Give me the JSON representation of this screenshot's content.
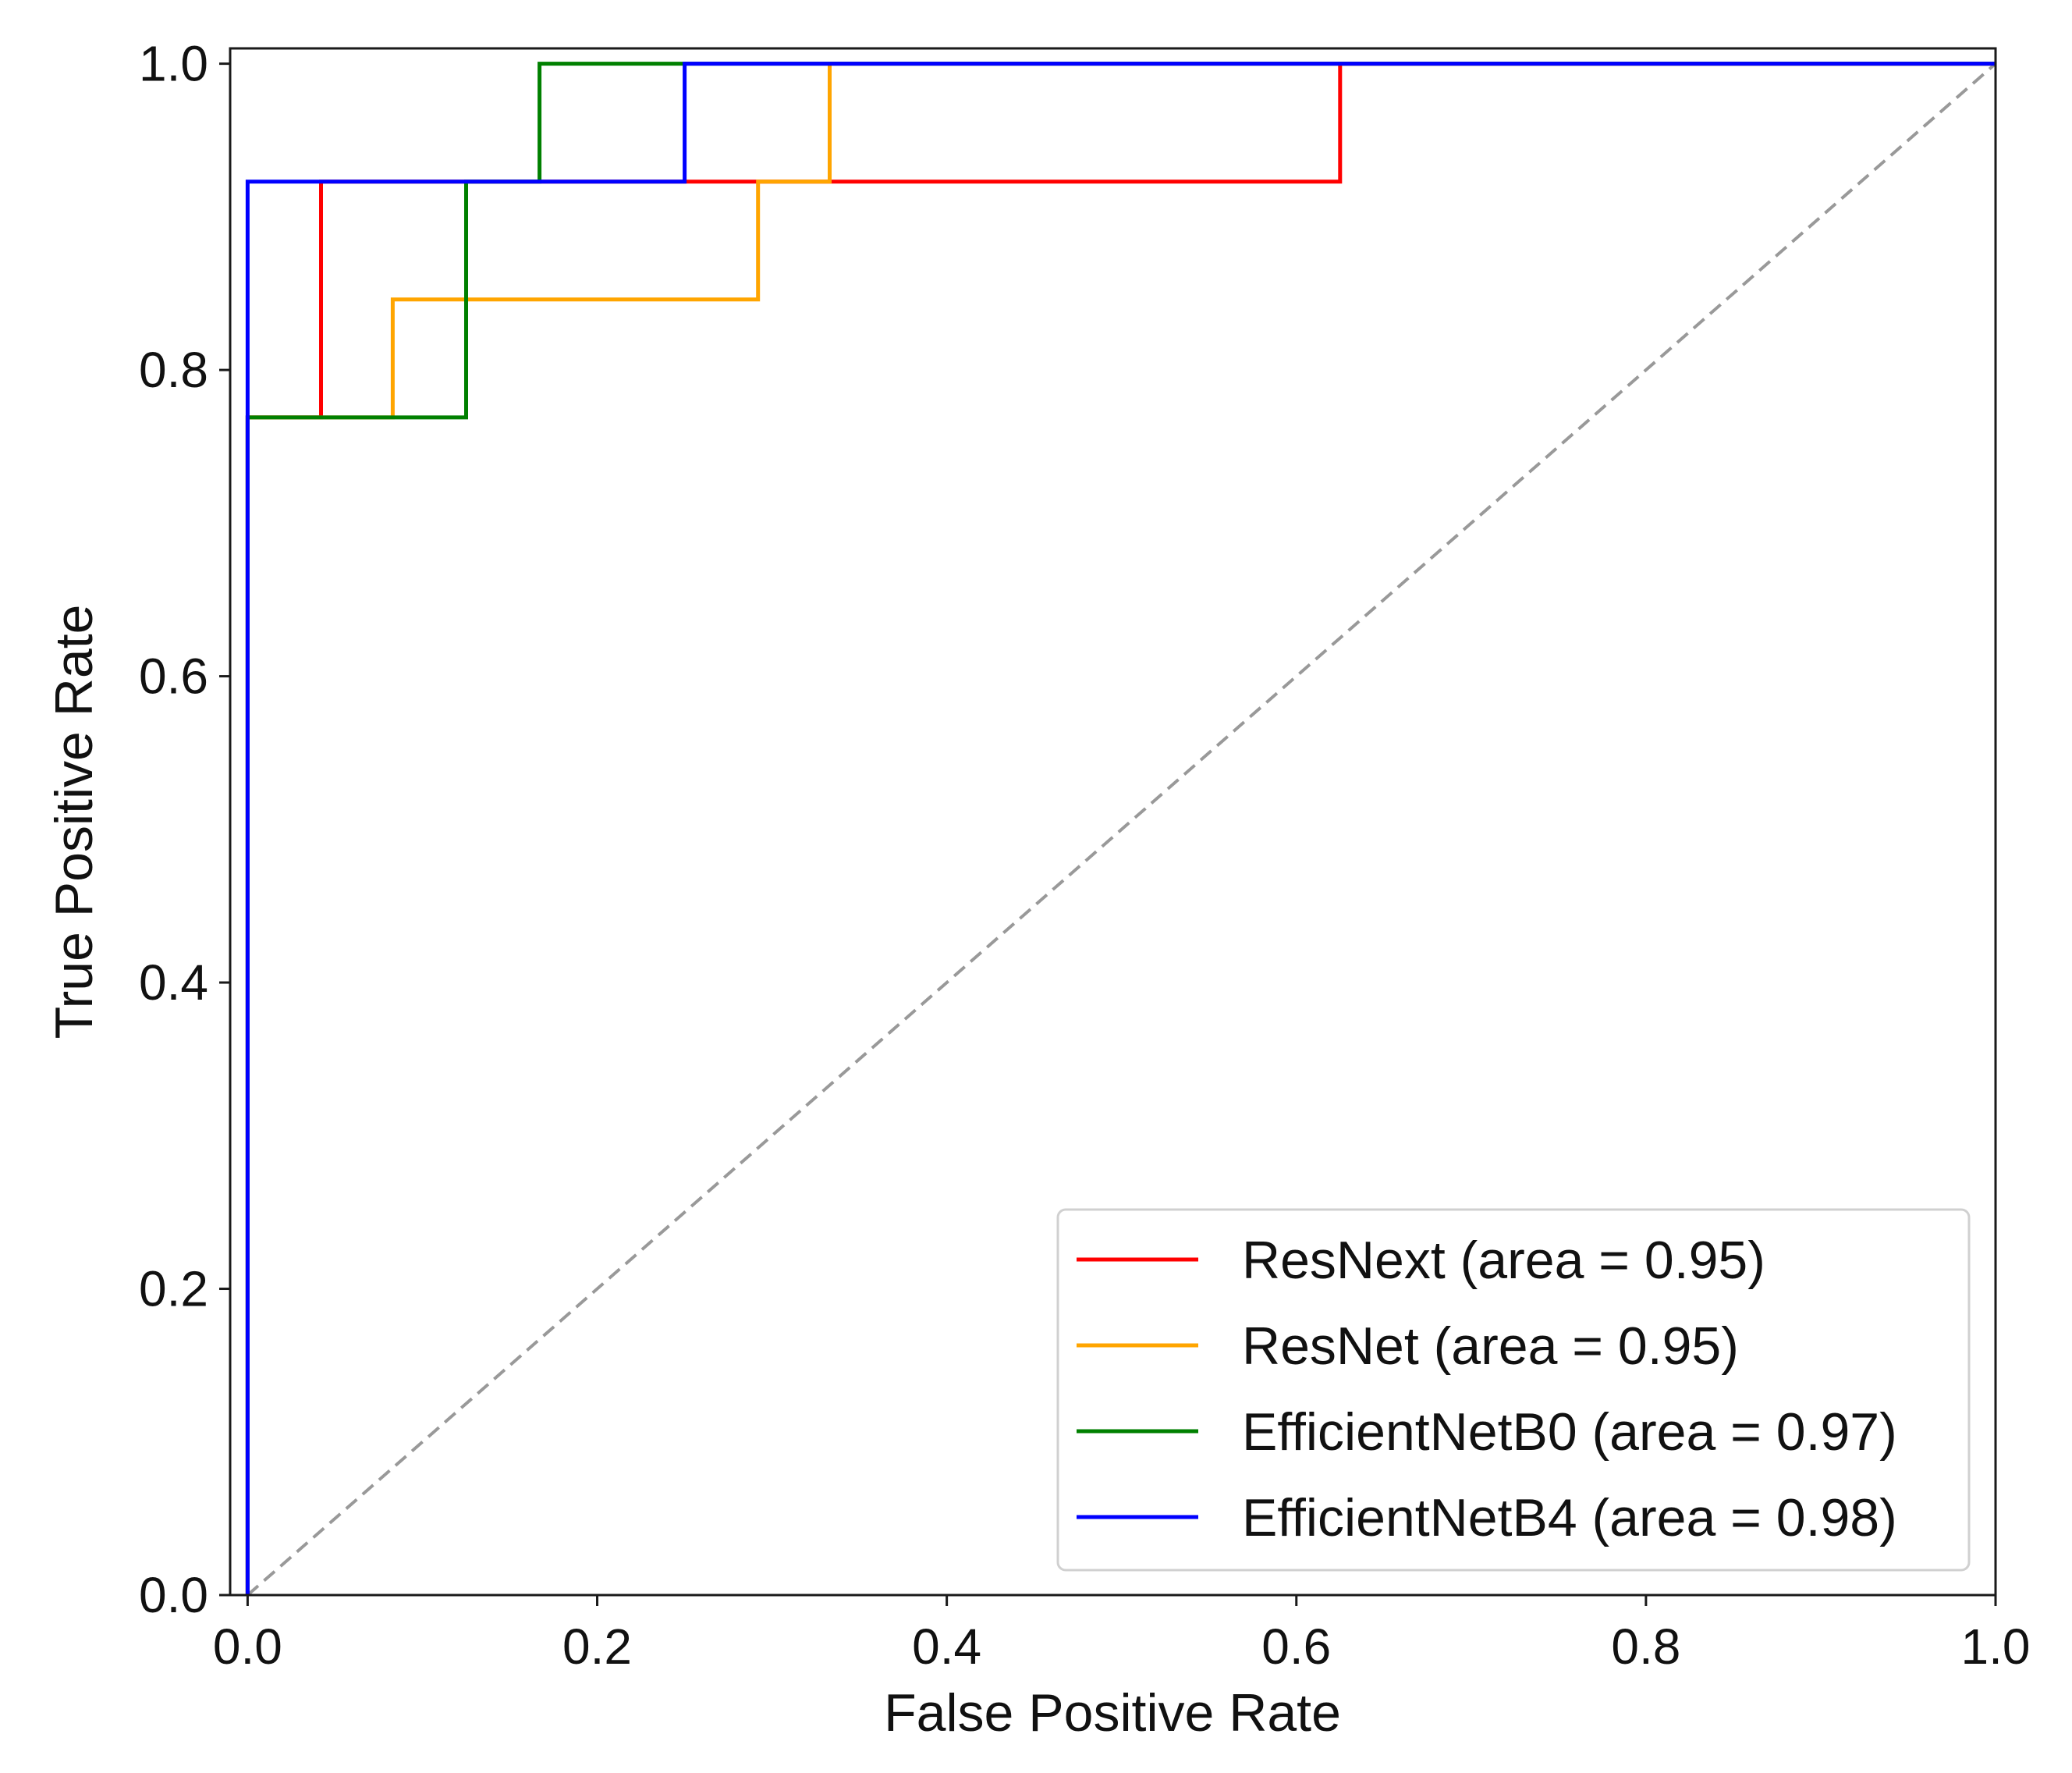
{
  "chart_data": {
    "type": "line",
    "title": "",
    "xlabel": "False Positive Rate",
    "ylabel": "True Positive Rate",
    "xlim": [
      0.0,
      1.0
    ],
    "ylim": [
      0.0,
      1.0
    ],
    "xticks": [
      0.0,
      0.2,
      0.4,
      0.6,
      0.8,
      1.0
    ],
    "yticks": [
      0.0,
      0.2,
      0.4,
      0.6,
      0.8,
      1.0
    ],
    "xtick_labels": [
      "0.0",
      "0.2",
      "0.4",
      "0.6",
      "0.8",
      "1.0"
    ],
    "ytick_labels": [
      "0.0",
      "0.2",
      "0.4",
      "0.6",
      "0.8",
      "1.0"
    ],
    "grid": false,
    "legend_position": "lower-right",
    "diagonal_reference": {
      "x": [
        0.0,
        1.0
      ],
      "y": [
        0.0,
        1.0
      ],
      "color": "#999999",
      "style": "dashed"
    },
    "series": [
      {
        "name": "ResNext",
        "label": "ResNext (area = 0.95)",
        "color": "#ff0000",
        "x": [
          0.0,
          0.0,
          0.042,
          0.042,
          0.625,
          0.625,
          1.0
        ],
        "y": [
          0.0,
          0.769,
          0.769,
          0.923,
          0.923,
          1.0,
          1.0
        ]
      },
      {
        "name": "ResNet",
        "label": "ResNet (area = 0.95)",
        "color": "#ffa500",
        "x": [
          0.0,
          0.0,
          0.083,
          0.083,
          0.292,
          0.292,
          0.333,
          0.333,
          1.0
        ],
        "y": [
          0.0,
          0.769,
          0.769,
          0.846,
          0.846,
          0.923,
          0.923,
          1.0,
          1.0
        ]
      },
      {
        "name": "EfficientNetB0",
        "label": "EfficientNetB0 (area = 0.97)",
        "color": "#008000",
        "x": [
          0.0,
          0.0,
          0.125,
          0.125,
          0.167,
          0.167,
          1.0
        ],
        "y": [
          0.0,
          0.769,
          0.769,
          0.923,
          0.923,
          1.0,
          1.0
        ]
      },
      {
        "name": "EfficientNetB4",
        "label": "EfficientNetB4 (area = 0.98)",
        "color": "#0000ff",
        "x": [
          0.0,
          0.0,
          0.25,
          0.25,
          1.0
        ],
        "y": [
          0.0,
          0.923,
          0.923,
          1.0,
          1.0
        ]
      }
    ]
  }
}
